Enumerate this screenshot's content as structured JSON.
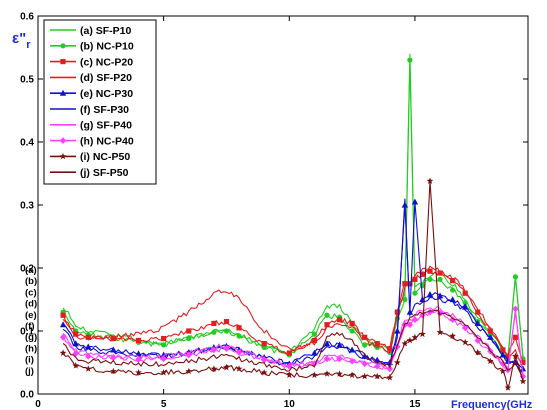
{
  "chart_data": {
    "type": "line",
    "title": "",
    "xlabel": "Frequency(GHz",
    "ylabel": "ε\"r",
    "xlim": [
      0,
      19.5
    ],
    "ylim": [
      0,
      0.6
    ],
    "xticks": [
      0,
      5,
      10,
      15
    ],
    "yticks": [
      0.0,
      0.1,
      0.2,
      0.3,
      0.4,
      0.5,
      0.6
    ],
    "ytick_labels": [
      "0.0",
      "0.1",
      "0.2",
      "0.3",
      "0.4",
      "0.5",
      "0.6"
    ],
    "grid": false,
    "legend_position": "top-left",
    "curve_labels": [
      "(a)",
      "(b)",
      "(c)",
      "(d)",
      "(e)",
      "(f)",
      "(g)",
      "(h)",
      "(i)",
      "(j)"
    ],
    "x": [
      1.0,
      1.5,
      2,
      3,
      4,
      5,
      6,
      7,
      7.5,
      8,
      9,
      10,
      11,
      11.5,
      12,
      12.5,
      13,
      13.5,
      14,
      14.3,
      14.6,
      14.8,
      15,
      15.3,
      15.6,
      16,
      16.5,
      17,
      17.5,
      18,
      18.5,
      18.7,
      19.0,
      19.3
    ],
    "series": [
      {
        "name": "(a) SF-P10",
        "color": "#22cc22",
        "marker": "none",
        "values": [
          0.14,
          0.108,
          0.1,
          0.095,
          0.085,
          0.08,
          0.09,
          0.1,
          0.102,
          0.096,
          0.078,
          0.065,
          0.105,
          0.14,
          0.14,
          0.115,
          0.085,
          0.08,
          0.07,
          0.13,
          0.16,
          0.54,
          0.17,
          0.18,
          0.19,
          0.19,
          0.175,
          0.15,
          0.12,
          0.1,
          0.07,
          0.06,
          0.188,
          0.06
        ]
      },
      {
        "name": "(b) NC-P10",
        "color": "#22cc22",
        "marker": "circle",
        "values": [
          0.13,
          0.1,
          0.094,
          0.09,
          0.082,
          0.078,
          0.088,
          0.098,
          0.1,
          0.092,
          0.074,
          0.062,
          0.095,
          0.125,
          0.122,
          0.1,
          0.078,
          0.074,
          0.066,
          0.12,
          0.15,
          0.53,
          0.16,
          0.172,
          0.182,
          0.182,
          0.165,
          0.145,
          0.115,
          0.095,
          0.066,
          0.055,
          0.186,
          0.056
        ]
      },
      {
        "name": "(c) NC-P20",
        "color": "#e02020",
        "marker": "square",
        "values": [
          0.125,
          0.095,
          0.09,
          0.088,
          0.085,
          0.088,
          0.1,
          0.112,
          0.115,
          0.105,
          0.08,
          0.065,
          0.085,
          0.11,
          0.118,
          0.112,
          0.09,
          0.08,
          0.072,
          0.13,
          0.175,
          0.175,
          0.182,
          0.19,
          0.195,
          0.192,
          0.18,
          0.16,
          0.13,
          0.1,
          0.07,
          0.06,
          0.09,
          0.05
        ]
      },
      {
        "name": "(d) SF-P20",
        "color": "#e02020",
        "marker": "none",
        "values": [
          0.12,
          0.09,
          0.088,
          0.09,
          0.095,
          0.105,
          0.13,
          0.16,
          0.165,
          0.15,
          0.1,
          0.07,
          0.08,
          0.105,
          0.112,
          0.105,
          0.085,
          0.076,
          0.068,
          0.125,
          0.17,
          0.175,
          0.188,
          0.198,
          0.2,
          0.196,
          0.185,
          0.165,
          0.135,
          0.105,
          0.072,
          0.062,
          0.07,
          0.04
        ]
      },
      {
        "name": "(e) NC-P30",
        "color": "#1010d0",
        "marker": "triangle",
        "values": [
          0.11,
          0.08,
          0.075,
          0.07,
          0.064,
          0.062,
          0.066,
          0.074,
          0.076,
          0.07,
          0.058,
          0.048,
          0.065,
          0.08,
          0.078,
          0.07,
          0.06,
          0.054,
          0.05,
          0.1,
          0.3,
          0.13,
          0.305,
          0.15,
          0.158,
          0.156,
          0.15,
          0.138,
          0.112,
          0.09,
          0.062,
          0.052,
          0.05,
          0.04
        ]
      },
      {
        "name": "(f) SF-P30",
        "color": "#1010d0",
        "marker": "none",
        "values": [
          0.105,
          0.075,
          0.07,
          0.065,
          0.06,
          0.06,
          0.064,
          0.072,
          0.074,
          0.068,
          0.056,
          0.046,
          0.06,
          0.075,
          0.074,
          0.066,
          0.056,
          0.05,
          0.046,
          0.09,
          0.31,
          0.125,
          0.14,
          0.148,
          0.152,
          0.15,
          0.145,
          0.132,
          0.108,
          0.086,
          0.06,
          0.05,
          0.045,
          0.035
        ]
      },
      {
        "name": "(g) SF-P40",
        "color": "#ff40ff",
        "marker": "none",
        "values": [
          0.095,
          0.068,
          0.064,
          0.06,
          0.058,
          0.06,
          0.066,
          0.074,
          0.078,
          0.07,
          0.056,
          0.046,
          0.05,
          0.06,
          0.06,
          0.055,
          0.05,
          0.046,
          0.042,
          0.08,
          0.12,
          0.115,
          0.125,
          0.132,
          0.138,
          0.135,
          0.125,
          0.112,
          0.09,
          0.072,
          0.05,
          0.04,
          0.13,
          0.03
        ]
      },
      {
        "name": "(h) NC-P40",
        "color": "#ff40ff",
        "marker": "diamond",
        "values": [
          0.09,
          0.064,
          0.06,
          0.058,
          0.055,
          0.056,
          0.062,
          0.07,
          0.072,
          0.066,
          0.054,
          0.044,
          0.048,
          0.056,
          0.056,
          0.052,
          0.048,
          0.044,
          0.04,
          0.075,
          0.11,
          0.11,
          0.118,
          0.125,
          0.13,
          0.128,
          0.118,
          0.105,
          0.085,
          0.068,
          0.048,
          0.038,
          0.135,
          0.028
        ]
      },
      {
        "name": "(i) NC-P50",
        "color": "#7a1010",
        "marker": "star",
        "values": [
          0.065,
          0.045,
          0.04,
          0.036,
          0.034,
          0.034,
          0.036,
          0.04,
          0.042,
          0.04,
          0.034,
          0.03,
          0.03,
          0.032,
          0.032,
          0.03,
          0.028,
          0.028,
          0.026,
          0.05,
          0.08,
          0.085,
          0.09,
          0.095,
          0.338,
          0.098,
          0.092,
          0.082,
          0.066,
          0.052,
          0.036,
          0.01,
          0.06,
          0.02
        ]
      },
      {
        "name": "(j) SF-P50",
        "color": "#7a1010",
        "marker": "none",
        "values": [
          0.08,
          0.056,
          0.052,
          0.05,
          0.048,
          0.048,
          0.052,
          0.058,
          0.06,
          0.056,
          0.046,
          0.038,
          0.045,
          0.09,
          0.095,
          0.085,
          0.06,
          0.05,
          0.046,
          0.08,
          0.11,
          0.12,
          0.125,
          0.13,
          0.132,
          0.13,
          0.122,
          0.11,
          0.09,
          0.07,
          0.05,
          0.04,
          0.05,
          0.02
        ]
      }
    ]
  }
}
